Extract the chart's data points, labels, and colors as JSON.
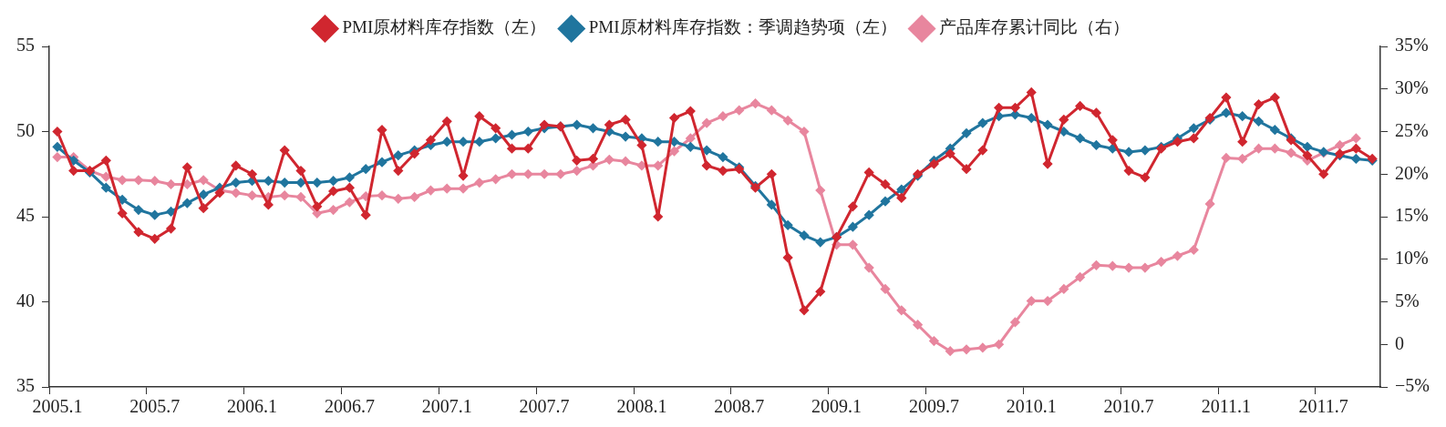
{
  "chart_data": {
    "type": "line",
    "legend": "top",
    "marker": "diamond",
    "line_style": "solid",
    "grid": false,
    "categories": [
      "2005.1",
      null,
      null,
      null,
      null,
      null,
      "2005.7",
      null,
      null,
      null,
      null,
      null,
      "2006.1",
      null,
      null,
      null,
      null,
      null,
      "2006.7",
      null,
      null,
      null,
      null,
      null,
      "2007.1",
      null,
      null,
      null,
      null,
      null,
      "2007.7",
      null,
      null,
      null,
      null,
      null,
      "2008.1",
      null,
      null,
      null,
      null,
      null,
      "2008.7",
      null,
      null,
      null,
      null,
      null,
      "2009.1",
      null,
      null,
      null,
      null,
      null,
      "2009.7",
      null,
      null,
      null,
      null,
      null,
      "2010.1",
      null,
      null,
      null,
      null,
      null,
      "2010.7",
      null,
      null,
      null,
      null,
      null,
      "2011.1",
      null,
      null,
      null,
      null,
      null,
      "2011.7",
      null,
      null,
      null
    ],
    "ylim": [
      35,
      55
    ],
    "yticks": [
      35,
      40,
      45,
      50,
      55
    ],
    "y2lim": [
      -5,
      35
    ],
    "y2ticks": [
      {
        "value": -5,
        "label": "−5%"
      },
      0,
      {
        "value": 5,
        "label": "5%"
      },
      {
        "value": 10,
        "label": "10%"
      },
      {
        "value": 15,
        "label": "15%"
      },
      {
        "value": 20,
        "label": "20%"
      },
      {
        "value": 25,
        "label": "25%"
      },
      {
        "value": 30,
        "label": "30%"
      },
      {
        "value": 35,
        "label": "35%"
      }
    ],
    "series": [
      {
        "name": "PMI原材料库存指数（左）",
        "color": "#d0262f",
        "values": [
          50.0,
          47.7,
          47.7,
          48.3,
          45.2,
          44.1,
          43.7,
          44.3,
          47.9,
          45.5,
          46.4,
          48.0,
          47.5,
          45.7,
          48.9,
          47.7,
          45.6,
          46.5,
          46.7,
          45.1,
          50.1,
          47.7,
          48.7,
          49.5,
          50.6,
          47.4,
          50.9,
          50.2,
          49.0,
          49.0,
          50.4,
          50.3,
          48.3,
          48.4,
          50.4,
          50.7,
          49.2,
          45.0,
          50.8,
          51.2,
          48.0,
          47.7,
          47.8,
          46.7,
          47.5,
          42.6,
          39.5,
          40.6,
          43.8,
          45.6,
          47.6,
          46.9,
          46.1,
          47.5,
          48.1,
          48.7,
          47.8,
          48.9,
          51.4,
          51.4,
          52.3,
          48.1,
          50.7,
          51.5,
          51.1,
          49.5,
          47.7,
          47.3,
          49.0,
          49.4,
          49.6,
          50.8,
          52.0,
          49.4,
          51.6,
          52.0,
          49.5,
          48.6,
          47.5,
          48.7,
          49.0,
          48.4
        ]
      },
      {
        "name": "PMI原材料库存指数：季调趋势项（左）",
        "color": "#20759e",
        "values": [
          49.1,
          48.3,
          47.6,
          46.7,
          46.0,
          45.4,
          45.1,
          45.3,
          45.8,
          46.3,
          46.7,
          47.0,
          47.1,
          47.1,
          47.0,
          47.0,
          47.0,
          47.1,
          47.3,
          47.8,
          48.2,
          48.6,
          48.9,
          49.2,
          49.4,
          49.4,
          49.4,
          49.6,
          49.8,
          50.0,
          50.2,
          50.3,
          50.4,
          50.2,
          50.0,
          49.7,
          49.6,
          49.4,
          49.4,
          49.1,
          48.9,
          48.5,
          47.9,
          46.8,
          45.7,
          44.5,
          43.9,
          43.5,
          43.8,
          44.4,
          45.1,
          45.9,
          46.6,
          47.4,
          48.3,
          49.0,
          49.9,
          50.5,
          50.9,
          51.0,
          50.8,
          50.4,
          50.0,
          49.6,
          49.2,
          49.0,
          48.8,
          48.9,
          49.1,
          49.6,
          50.2,
          50.7,
          51.1,
          50.9,
          50.6,
          50.1,
          49.6,
          49.1,
          48.8,
          48.6,
          48.4,
          48.3
        ]
      },
      {
        "name": "产品库存累计同比（右）",
        "color": "#e8869e",
        "axis": "y2",
        "values": [
          22.0,
          22.0,
          20.4,
          19.7,
          19.3,
          19.3,
          19.2,
          18.8,
          18.8,
          19.3,
          18.1,
          17.8,
          17.5,
          17.3,
          17.5,
          17.3,
          15.4,
          15.8,
          16.7,
          17.4,
          17.5,
          17.1,
          17.3,
          18.1,
          18.3,
          18.3,
          19.0,
          19.4,
          20.0,
          20.0,
          20.0,
          20.0,
          20.4,
          21.0,
          21.7,
          21.5,
          21.0,
          21.0,
          22.7,
          24.2,
          26.0,
          26.8,
          27.5,
          28.3,
          27.5,
          26.3,
          25.0,
          18.1,
          11.7,
          11.7,
          9.0,
          6.5,
          4.0,
          2.3,
          0.4,
          -0.8,
          -0.6,
          -0.4,
          0.0,
          2.6,
          5.1,
          5.1,
          6.5,
          7.9,
          9.3,
          9.2,
          9.0,
          9.0,
          9.7,
          10.4,
          11.1,
          16.5,
          21.9,
          21.8,
          23.0,
          23.0,
          22.5,
          21.6,
          22.5,
          23.4,
          24.2,
          null
        ]
      }
    ]
  }
}
